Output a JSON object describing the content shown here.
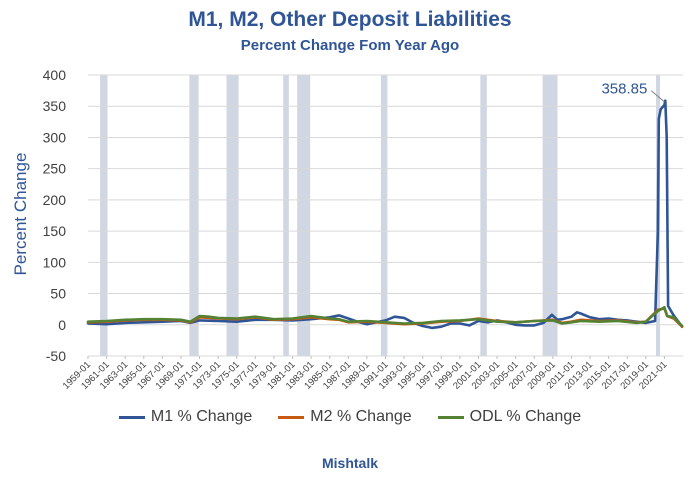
{
  "chart_data": {
    "type": "line",
    "title": "M1, M2, Other Deposit Liabilities",
    "subtitle": "Percent Change Fom Year Ago",
    "ylabel": "Percent Change",
    "xlabel": "",
    "ylim": [
      -50,
      400
    ],
    "yticks": [
      400,
      350,
      300,
      250,
      200,
      150,
      100,
      50,
      0,
      -50
    ],
    "xlim": [
      1959,
      2023
    ],
    "xtick_labels": [
      "1959-01",
      "1961-01",
      "1963-01",
      "1965-01",
      "1967-01",
      "1969-01",
      "1971-01",
      "1973-01",
      "1975-01",
      "1977-01",
      "1979-01",
      "1981-01",
      "1983-01",
      "1985-01",
      "1987-01",
      "1989-01",
      "1991-01",
      "1993-01",
      "1995-01",
      "1997-01",
      "1999-01",
      "2001-01",
      "2003-01",
      "2005-01",
      "2007-01",
      "2009-01",
      "2011-01",
      "2013-01",
      "2015-01",
      "2017-01",
      "2019-01",
      "2021-01"
    ],
    "recessions": [
      [
        1960.3,
        1961.1
      ],
      [
        1969.9,
        1970.9
      ],
      [
        1973.9,
        1975.2
      ],
      [
        1980.0,
        1980.6
      ],
      [
        1981.5,
        1982.9
      ],
      [
        1990.5,
        1991.2
      ],
      [
        2001.2,
        2001.9
      ],
      [
        2007.9,
        2009.5
      ],
      [
        2020.1,
        2020.4
      ]
    ],
    "annotation": {
      "label": "358.85",
      "x": 2021.1,
      "y": 358.85
    },
    "grid": true,
    "legend_position": "bottom",
    "series": [
      {
        "name": "M1 % Change",
        "color": "#2f5597",
        "x": [
          1959,
          1961,
          1963,
          1965,
          1967,
          1969,
          1970,
          1971,
          1973,
          1975,
          1977,
          1979,
          1981,
          1983,
          1985,
          1986,
          1987,
          1988,
          1989,
          1990,
          1991,
          1992,
          1993,
          1994,
          1995,
          1996,
          1997,
          1998,
          1999,
          2000,
          2001,
          2002,
          2003,
          2004,
          2005,
          2006,
          2007,
          2008,
          2008.9,
          2009.5,
          2010,
          2011,
          2011.6,
          2012,
          2013,
          2014,
          2015,
          2016,
          2017,
          2018,
          2019,
          2020.0,
          2020.3,
          2020.4,
          2020.6,
          2021.0,
          2021.1,
          2021.25,
          2021.4,
          2022,
          2022.5,
          2022.9
        ],
        "y": [
          2,
          1,
          3,
          4,
          5,
          6,
          3,
          7,
          6,
          5,
          8,
          8,
          7,
          9,
          12,
          15,
          10,
          5,
          1,
          4,
          7,
          13,
          11,
          3,
          -2,
          -5,
          -3,
          2,
          2,
          -1,
          6,
          4,
          7,
          4,
          0,
          -1,
          -1,
          3,
          16,
          8,
          9,
          13,
          20,
          18,
          12,
          9,
          10,
          8,
          7,
          5,
          3,
          6,
          150,
          330,
          345,
          352,
          358.85,
          300,
          30,
          15,
          5,
          -3
        ]
      },
      {
        "name": "M2 % Change",
        "color": "#c55a11",
        "x": [
          1959,
          1961,
          1963,
          1965,
          1967,
          1969,
          1970,
          1971,
          1973,
          1975,
          1977,
          1979,
          1981,
          1983,
          1985,
          1986,
          1987,
          1989,
          1991,
          1993,
          1995,
          1997,
          1999,
          2001,
          2003,
          2005,
          2007,
          2009,
          2010,
          2011,
          2012,
          2014,
          2016,
          2018,
          2019,
          2020.3,
          2021,
          2021.3,
          2022,
          2022.9
        ],
        "y": [
          4,
          5,
          7,
          8,
          8,
          7,
          4,
          12,
          10,
          9,
          12,
          8,
          9,
          12,
          9,
          8,
          4,
          5,
          3,
          1,
          2,
          5,
          6,
          10,
          6,
          4,
          6,
          8,
          3,
          5,
          8,
          6,
          7,
          4,
          5,
          24,
          26,
          14,
          10,
          -3
        ]
      },
      {
        "name": "ODL % Change",
        "color": "#548235",
        "x": [
          1959,
          1961,
          1963,
          1965,
          1967,
          1969,
          1970,
          1971,
          1972,
          1973,
          1975,
          1977,
          1979,
          1981,
          1983,
          1985,
          1986,
          1987,
          1989,
          1991,
          1993,
          1995,
          1997,
          1999,
          2001,
          2003,
          2005,
          2007,
          2009,
          2010,
          2011,
          2012,
          2014,
          2016,
          2018,
          2019,
          2020.3,
          2021,
          2021.3,
          2022,
          2022.9
        ],
        "y": [
          5,
          6,
          8,
          9,
          9,
          8,
          5,
          14,
          13,
          11,
          10,
          13,
          9,
          10,
          14,
          10,
          9,
          5,
          6,
          4,
          2,
          3,
          6,
          7,
          9,
          5,
          4,
          6,
          7,
          2,
          4,
          6,
          5,
          6,
          3,
          5,
          22,
          28,
          14,
          12,
          -2
        ]
      }
    ]
  }
}
